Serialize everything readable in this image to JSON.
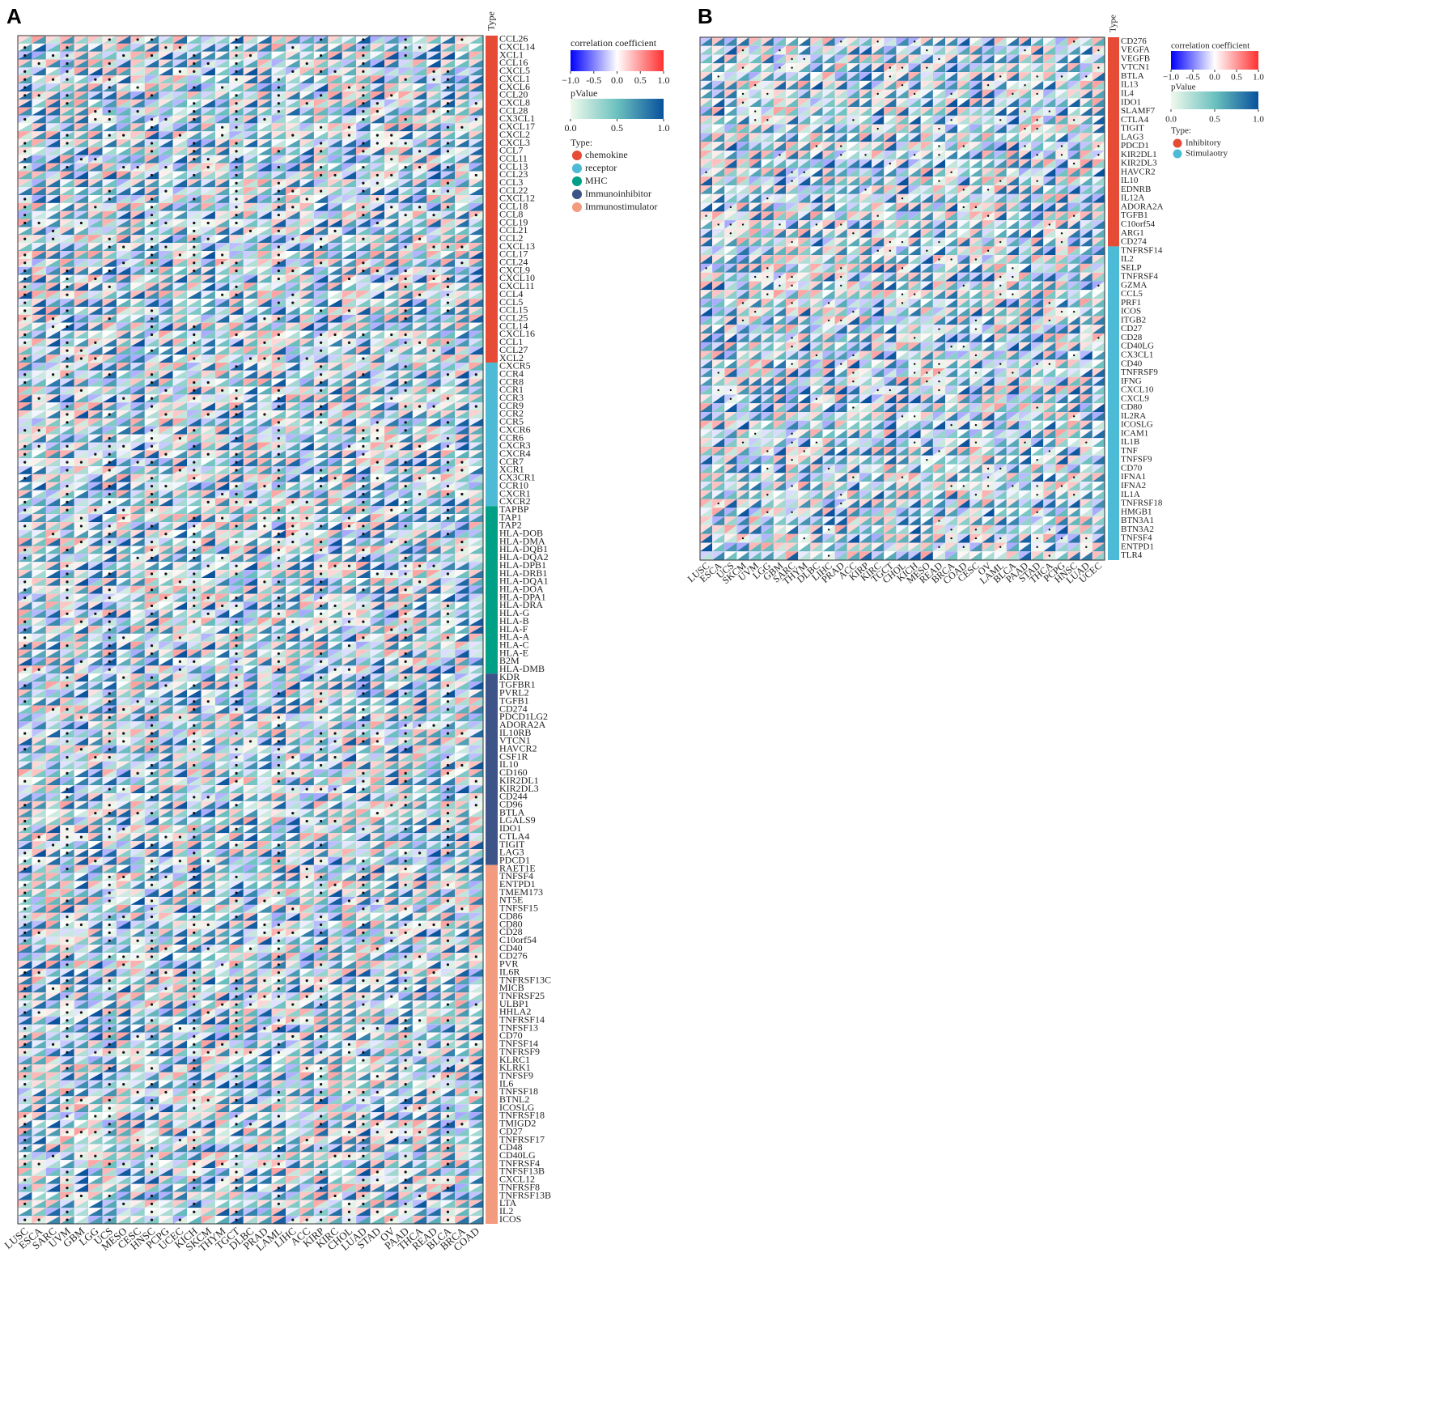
{
  "chart_data": [
    {
      "type": "heatmap",
      "panel": "A",
      "type_header": "Type",
      "columns": [
        "LUSC",
        "ESCA",
        "SARC",
        "UVM",
        "GBM",
        "LGG",
        "UCS",
        "MESO",
        "CESC",
        "HNSC",
        "PCPG",
        "UCEC",
        "KICH",
        "SKCM",
        "THYM",
        "TGCT",
        "DLBC",
        "PRAD",
        "LAML",
        "LIHC",
        "ACC",
        "KIRP",
        "KIRC",
        "CHOL",
        "LUAD",
        "STAD",
        "OV",
        "PAAD",
        "THCA",
        "READ",
        "BLCA",
        "BRCA",
        "COAD"
      ],
      "groups": [
        {
          "name": "chemokine",
          "color": "#e64b35",
          "rows": [
            "CCL26",
            "CXCL14",
            "XCL1",
            "CCL16",
            "CXCL5",
            "CXCL1",
            "CXCL6",
            "CCL20",
            "CXCL8",
            "CCL28",
            "CX3CL1",
            "CXCL17",
            "CXCL2",
            "CXCL3",
            "CCL7",
            "CCL11",
            "CCL13",
            "CCL23",
            "CCL3",
            "CCL22",
            "CXCL12",
            "CCL18",
            "CCL8",
            "CCL19",
            "CCL21",
            "CCL2",
            "CXCL13",
            "CCL17",
            "CCL24",
            "CXCL9",
            "CXCL10",
            "CXCL11",
            "CCL4",
            "CCL5",
            "CCL15",
            "CCL25",
            "CCL14",
            "CXCL16",
            "CCL1",
            "CCL27",
            "XCL2"
          ]
        },
        {
          "name": "receptor",
          "color": "#4dbbd5",
          "rows": [
            "CXCR5",
            "CCR4",
            "CCR8",
            "CCR1",
            "CCR3",
            "CCR9",
            "CCR2",
            "CCR5",
            "CXCR6",
            "CCR6",
            "CXCR3",
            "CXCR4",
            "CCR7",
            "XCR1",
            "CX3CR1",
            "CCR10",
            "CXCR1",
            "CXCR2"
          ]
        },
        {
          "name": "MHC",
          "color": "#00a087",
          "rows": [
            "TAPBP",
            "TAP1",
            "TAP2",
            "HLA-DOB",
            "HLA-DMA",
            "HLA-DQB1",
            "HLA-DQA2",
            "HLA-DPB1",
            "HLA-DRB1",
            "HLA-DQA1",
            "HLA-DOA",
            "HLA-DPA1",
            "HLA-DRA",
            "HLA-G",
            "HLA-B",
            "HLA-F",
            "HLA-A",
            "HLA-C",
            "HLA-E",
            "B2M",
            "HLA-DMB"
          ]
        },
        {
          "name": "Immunoinhibitor",
          "color": "#3c5488",
          "rows": [
            "KDR",
            "TGFBR1",
            "PVRL2",
            "TGFB1",
            "CD274",
            "PDCD1LG2",
            "ADORA2A",
            "IL10RB",
            "VTCN1",
            "HAVCR2",
            "CSF1R",
            "IL10",
            "CD160",
            "KIR2DL1",
            "KIR2DL3",
            "CD244",
            "CD96",
            "BTLA",
            "LGALS9",
            "IDO1",
            "CTLA4",
            "TIGIT",
            "LAG3",
            "PDCD1"
          ]
        },
        {
          "name": "Immunostimulator",
          "color": "#f39b7f",
          "rows": [
            "RAET1E",
            "TNFSF4",
            "ENTPD1",
            "TMEM173",
            "NT5E",
            "TNFSF15",
            "CD86",
            "CD80",
            "CD28",
            "C10orf54",
            "CD40",
            "CD276",
            "PVR",
            "IL6R",
            "TNFRSF13C",
            "MICB",
            "TNFRSF25",
            "ULBP1",
            "HHLA2",
            "TNFRSF14",
            "TNFSF13",
            "CD70",
            "TNFSF14",
            "TNFRSF9",
            "KLRC1",
            "KLRK1",
            "TNFSF9",
            "IL6",
            "TNFSF18",
            "BTNL2",
            "ICOSLG",
            "TNFRSF18",
            "TMIGD2",
            "CD27",
            "TNFRSF17",
            "CD48",
            "CD40LG",
            "TNFRSF4",
            "TNFSF13B",
            "CXCL12",
            "TNFRSF8",
            "TNFRSF13B",
            "LTA",
            "IL2",
            "ICOS"
          ]
        }
      ],
      "colorbar_title": "correlation coefficient",
      "colorbar_ticks": [
        {
          "value": -1,
          "label": "−1.0"
        },
        -0.5,
        {
          "value": 0,
          "label": "0.0"
        },
        0.5,
        {
          "value": 1,
          "label": "1.0"
        }
      ],
      "pvalue_title": "pValue",
      "pvalue_ticks": [
        {
          "value": 0,
          "label": "0.0"
        },
        0.5,
        {
          "value": 1,
          "label": "1.0"
        }
      ],
      "legend_title": "Type:"
    },
    {
      "type": "heatmap",
      "panel": "B",
      "type_header": "Type",
      "columns": [
        "LUSC",
        "ESCA",
        "UCS",
        "SKCM",
        "UVM",
        "LGG",
        "GBM",
        "SARC",
        "THYM",
        "DLBC",
        "LIHC",
        "PRAD",
        "ACC",
        "KIRP",
        "KIRC",
        "TGCT",
        "CHOL",
        "KICH",
        "MESO",
        "READ",
        "BRCA",
        "COAD",
        "CESC",
        "OV",
        "LAML",
        "BLCA",
        "PAAD",
        "STAD",
        "THCA",
        "PCPG",
        "HNSC",
        "LUAD",
        "UCEC"
      ],
      "groups": [
        {
          "name": "Inhibitory",
          "color": "#e64b35",
          "rows": [
            "CD276",
            "VEGFA",
            "VEGFB",
            "VTCN1",
            "BTLA",
            "IL13",
            "IL4",
            "IDO1",
            "SLAMF7",
            "CTLA4",
            "TIGIT",
            "LAG3",
            "PDCD1",
            "KIR2DL1",
            "KIR2DL3",
            "HAVCR2",
            "IL10",
            "EDNRB",
            "IL12A",
            "ADORA2A",
            "TGFB1",
            "C10orf54",
            "ARG1",
            "CD274"
          ]
        },
        {
          "name": "Stimulaotry",
          "color": "#4dbbd5",
          "rows": [
            "TNFRSF14",
            "IL2",
            "SELP",
            "TNFRSF4",
            "GZMA",
            "CCL5",
            "PRF1",
            "ICOS",
            "ITGB2",
            "CD27",
            "CD28",
            "CD40LG",
            "CX3CL1",
            "CD40",
            "TNFRSF9",
            "IFNG",
            "CXCL10",
            "CXCL9",
            "CD80",
            "IL2RA",
            "ICOSLG",
            "ICAM1",
            "IL1B",
            "TNF",
            "TNFSF9",
            "CD70",
            "IFNA1",
            "IFNA2",
            "IL1A",
            "TNFRSF18",
            "HMGB1",
            "BTN3A1",
            "BTN3A2",
            "TNFSF4",
            "ENTPD1",
            "TLR4"
          ]
        }
      ],
      "colorbar_title": "correlation coefficient",
      "colorbar_ticks": [
        {
          "value": -1,
          "label": "−1.0"
        },
        -0.5,
        {
          "value": 0,
          "label": "0.0"
        },
        0.5,
        {
          "value": 1,
          "label": "1.0"
        }
      ],
      "pvalue_title": "pValue",
      "pvalue_ticks": [
        {
          "value": 0,
          "label": "0.0"
        },
        0.5,
        {
          "value": 1,
          "label": "1.0"
        }
      ],
      "legend_title": "Type:"
    }
  ]
}
